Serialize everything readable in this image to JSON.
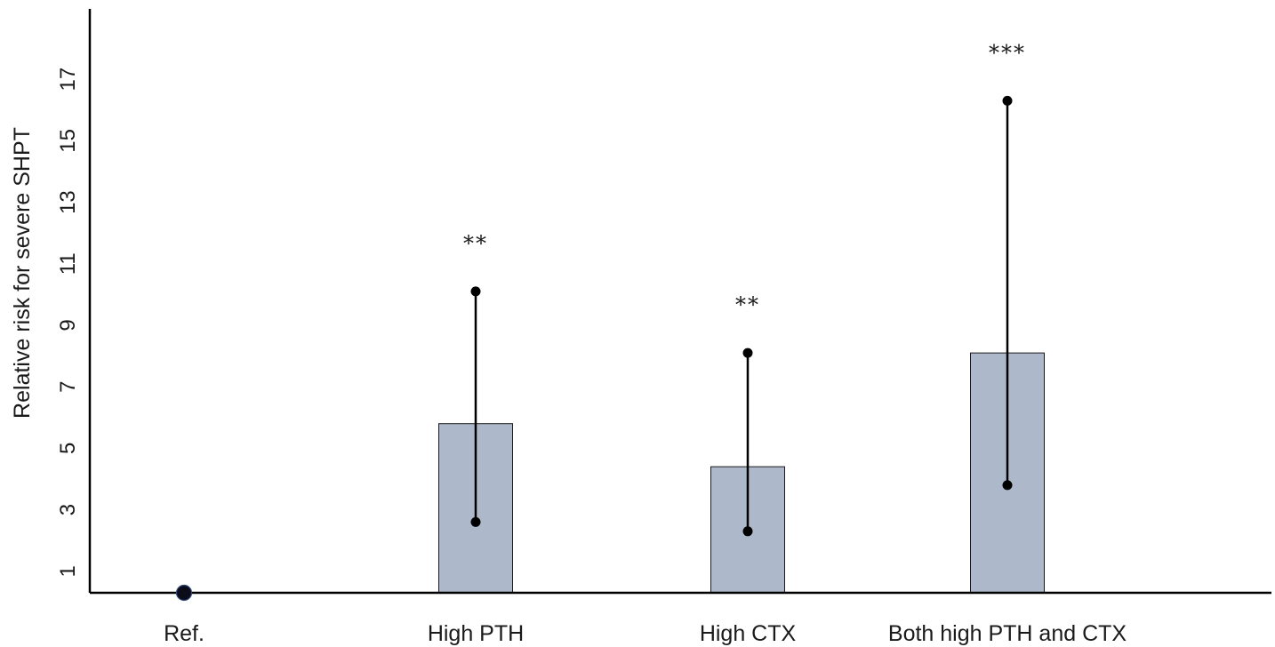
{
  "chart_data": {
    "type": "bar",
    "title": "",
    "xlabel": "",
    "ylabel": "Relative risk for severe SHPT",
    "ylim": [
      0,
      18
    ],
    "yticks": [
      1,
      3,
      5,
      7,
      9,
      11,
      13,
      15,
      17
    ],
    "grid": false,
    "categories": [
      "Ref.",
      "High PTH",
      "High CTX",
      "Both high PTH and CTX"
    ],
    "values": [
      1,
      5.8,
      4.4,
      8.1
    ],
    "ci_lower": [
      null,
      2.6,
      2.3,
      3.8
    ],
    "ci_upper": [
      null,
      10.1,
      8.1,
      16.3
    ],
    "reference_marker": {
      "category": "Ref.",
      "value": 1
    },
    "significance": [
      "",
      "**",
      "**",
      "***"
    ],
    "colors": {
      "bar": "#adb9ca",
      "bar_edge": "#1a1a1a",
      "whisker": "#000000",
      "axis": "#000000"
    }
  }
}
